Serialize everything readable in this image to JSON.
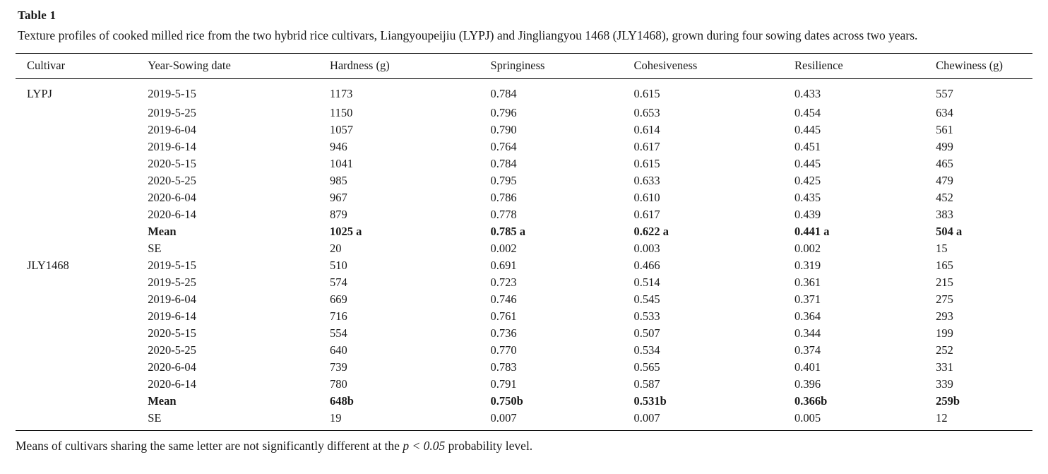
{
  "page": {
    "title": "Table 1",
    "caption": "Texture profiles of cooked milled rice from the two hybrid rice cultivars, Liangyoupeijiu (LYPJ) and Jingliangyou 1468 (JLY1468), grown during four sowing dates across two years.",
    "footnote_prefix": "Means of cultivars sharing the same letter are not significantly different at the ",
    "footnote_italic": "p < 0.05",
    "footnote_suffix": " probability level.",
    "text_color": "#1a1a1a",
    "background_color": "#ffffff",
    "rule_color": "#000000"
  },
  "chart_data": {
    "type": "table",
    "title": "Table 1. Texture profiles of cooked milled rice from two hybrid rice cultivars across four sowing dates in two years",
    "columns": [
      "Cultivar",
      "Year-Sowing date",
      "Hardness (g)",
      "Springiness",
      "Cohesiveness",
      "Resilience",
      "Chewiness (g)"
    ],
    "rows": [
      {
        "bold": false,
        "cells": [
          "LYPJ",
          "2019-5-15",
          "1173",
          "0.784",
          "0.615",
          "0.433",
          "557"
        ]
      },
      {
        "bold": false,
        "cells": [
          "",
          "2019-5-25",
          "1150",
          "0.796",
          "0.653",
          "0.454",
          "634"
        ]
      },
      {
        "bold": false,
        "cells": [
          "",
          "2019-6-04",
          "1057",
          "0.790",
          "0.614",
          "0.445",
          "561"
        ]
      },
      {
        "bold": false,
        "cells": [
          "",
          "2019-6-14",
          "946",
          "0.764",
          "0.617",
          "0.451",
          "499"
        ]
      },
      {
        "bold": false,
        "cells": [
          "",
          "2020-5-15",
          "1041",
          "0.784",
          "0.615",
          "0.445",
          "465"
        ]
      },
      {
        "bold": false,
        "cells": [
          "",
          "2020-5-25",
          "985",
          "0.795",
          "0.633",
          "0.425",
          "479"
        ]
      },
      {
        "bold": false,
        "cells": [
          "",
          "2020-6-04",
          "967",
          "0.786",
          "0.610",
          "0.435",
          "452"
        ]
      },
      {
        "bold": false,
        "cells": [
          "",
          "2020-6-14",
          "879",
          "0.778",
          "0.617",
          "0.439",
          "383"
        ]
      },
      {
        "bold": true,
        "cells": [
          "",
          "Mean",
          "1025 a",
          "0.785 a",
          "0.622 a",
          "0.441 a",
          "504 a"
        ]
      },
      {
        "bold": false,
        "cells": [
          "",
          "SE",
          "20",
          "0.002",
          "0.003",
          "0.002",
          "15"
        ]
      },
      {
        "bold": false,
        "cells": [
          "JLY1468",
          "2019-5-15",
          "510",
          "0.691",
          "0.466",
          "0.319",
          "165"
        ]
      },
      {
        "bold": false,
        "cells": [
          "",
          "2019-5-25",
          "574",
          "0.723",
          "0.514",
          "0.361",
          "215"
        ]
      },
      {
        "bold": false,
        "cells": [
          "",
          "2019-6-04",
          "669",
          "0.746",
          "0.545",
          "0.371",
          "275"
        ]
      },
      {
        "bold": false,
        "cells": [
          "",
          "2019-6-14",
          "716",
          "0.761",
          "0.533",
          "0.364",
          "293"
        ]
      },
      {
        "bold": false,
        "cells": [
          "",
          "2020-5-15",
          "554",
          "0.736",
          "0.507",
          "0.344",
          "199"
        ]
      },
      {
        "bold": false,
        "cells": [
          "",
          "2020-5-25",
          "640",
          "0.770",
          "0.534",
          "0.374",
          "252"
        ]
      },
      {
        "bold": false,
        "cells": [
          "",
          "2020-6-04",
          "739",
          "0.783",
          "0.565",
          "0.401",
          "331"
        ]
      },
      {
        "bold": false,
        "cells": [
          "",
          "2020-6-14",
          "780",
          "0.791",
          "0.587",
          "0.396",
          "339"
        ]
      },
      {
        "bold": true,
        "cells": [
          "",
          "Mean",
          "648b",
          "0.750b",
          "0.531b",
          "0.366b",
          "259b"
        ]
      },
      {
        "bold": false,
        "cells": [
          "",
          "SE",
          "19",
          "0.007",
          "0.007",
          "0.005",
          "12"
        ]
      }
    ]
  }
}
